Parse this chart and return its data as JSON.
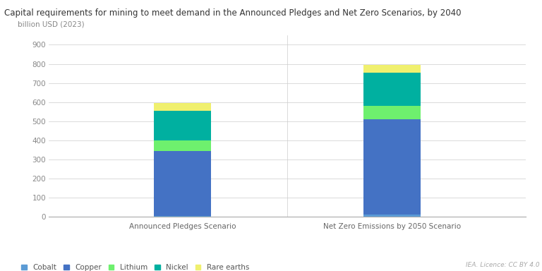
{
  "title": "Capital requirements for mining to meet demand in the Announced Pledges and Net Zero Scenarios, by 2040",
  "ylabel": "billion USD (2023)",
  "categories": [
    "Announced Pledges Scenario",
    "Net Zero Emissions by 2050 Scenario"
  ],
  "segments": [
    "Cobalt",
    "Copper",
    "Lithium",
    "Nickel",
    "Rare earths"
  ],
  "values": [
    [
      5,
      340,
      55,
      155,
      40
    ],
    [
      10,
      500,
      70,
      175,
      40
    ]
  ],
  "colors": [
    "#5b9bd5",
    "#4472c4",
    "#6ef06e",
    "#00b0a0",
    "#f0f06e"
  ],
  "ylim": [
    0,
    950
  ],
  "yticks": [
    0,
    100,
    200,
    300,
    400,
    500,
    600,
    700,
    800,
    900
  ],
  "bar_width": 0.12,
  "x_positions": [
    0.28,
    0.72
  ],
  "xlim": [
    0.0,
    1.0
  ],
  "background_color": "#ffffff",
  "grid_color": "#cccccc",
  "title_fontsize": 8.5,
  "label_fontsize": 7.5,
  "tick_fontsize": 7.5,
  "legend_fontsize": 7.5,
  "watermark": "IEA. Licence: CC BY 4.0"
}
